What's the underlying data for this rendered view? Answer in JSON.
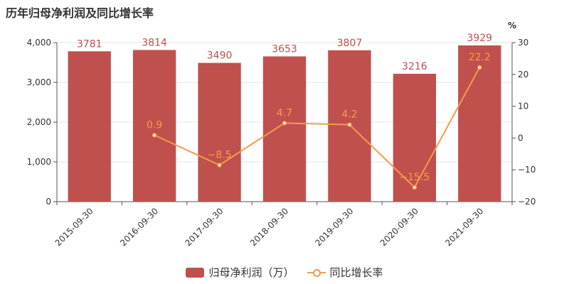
{
  "title": "历年归母净利润及同比增长率",
  "colors": {
    "bar": "#c0504d",
    "line": "#f59a4d",
    "axis": "#555555",
    "grid": "#e6e6e6"
  },
  "chart_data": {
    "type": "bar",
    "categories": [
      "2015-09-30",
      "2016-09-30",
      "2017-09-30",
      "2018-09-30",
      "2019-09-30",
      "2020-09-30",
      "2021-09-30"
    ],
    "series": [
      {
        "name": "归母净利润（万）",
        "type": "bar",
        "axis": "left",
        "values": [
          3781,
          3814,
          3490,
          3653,
          3807,
          3216,
          3929
        ]
      },
      {
        "name": "同比增长率",
        "type": "line",
        "axis": "right",
        "values": [
          null,
          0.9,
          -8.5,
          4.7,
          4.2,
          -15.5,
          22.2
        ]
      }
    ],
    "left_axis": {
      "min": 0,
      "max": 4000,
      "ticks": [
        0,
        1000,
        2000,
        3000,
        4000
      ],
      "tick_labels": [
        "0",
        "1,000",
        "2,000",
        "3,000",
        "4,000"
      ]
    },
    "right_axis": {
      "unit": "%",
      "min": -20,
      "max": 30,
      "ticks": [
        -20,
        -10,
        0,
        10,
        20,
        30
      ],
      "tick_labels": [
        "−20",
        "−10",
        "0",
        "10",
        "20",
        "30"
      ]
    },
    "bar_labels": [
      "3781",
      "3814",
      "3490",
      "3653",
      "3807",
      "3216",
      "3929"
    ],
    "line_labels": [
      "",
      "0.9",
      "−8.5",
      "4.7",
      "4.2",
      "−15.5",
      "22.2"
    ],
    "grid": true,
    "legend_position": "bottom"
  },
  "legend": {
    "bar_label": "归母净利润（万）",
    "line_label": "同比增长率"
  }
}
